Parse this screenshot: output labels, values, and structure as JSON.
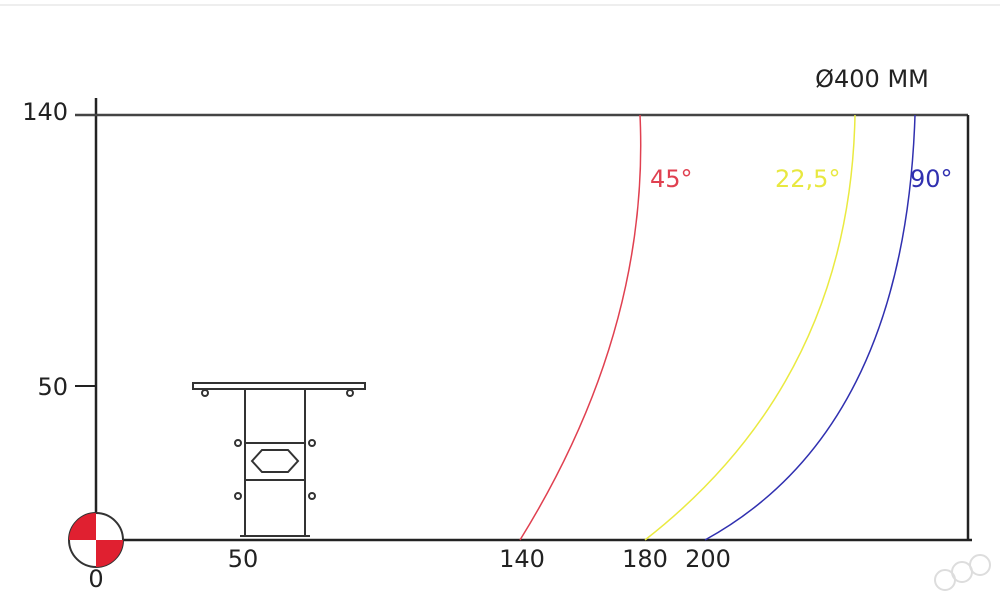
{
  "y_axis_labels": [
    "140",
    "50"
  ],
  "x_axis_labels": [
    "0",
    "50",
    "140",
    "180",
    "200"
  ],
  "diameter_label": "Ø400 MM",
  "angle_labels": [
    "45°",
    "22,5°",
    "90°"
  ]
}
